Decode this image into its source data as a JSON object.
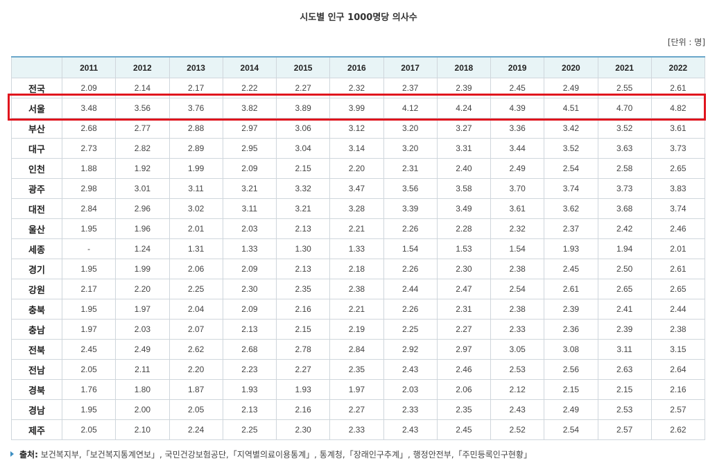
{
  "title": "시도별 인구 1000명당 의사수",
  "unit": "[단위 : 명]",
  "table": {
    "years": [
      "2011",
      "2012",
      "2013",
      "2014",
      "2015",
      "2016",
      "2017",
      "2018",
      "2019",
      "2020",
      "2021",
      "2022"
    ],
    "rows": [
      {
        "region": "전국",
        "values": [
          "2.09",
          "2.14",
          "2.17",
          "2.22",
          "2.27",
          "2.32",
          "2.37",
          "2.39",
          "2.45",
          "2.49",
          "2.55",
          "2.61"
        ]
      },
      {
        "region": "서울",
        "values": [
          "3.48",
          "3.56",
          "3.76",
          "3.82",
          "3.89",
          "3.99",
          "4.12",
          "4.24",
          "4.39",
          "4.51",
          "4.70",
          "4.82"
        ]
      },
      {
        "region": "부산",
        "values": [
          "2.68",
          "2.77",
          "2.88",
          "2.97",
          "3.06",
          "3.12",
          "3.20",
          "3.27",
          "3.36",
          "3.42",
          "3.52",
          "3.61"
        ]
      },
      {
        "region": "대구",
        "values": [
          "2.73",
          "2.82",
          "2.89",
          "2.95",
          "3.04",
          "3.14",
          "3.20",
          "3.31",
          "3.44",
          "3.52",
          "3.63",
          "3.73"
        ]
      },
      {
        "region": "인천",
        "values": [
          "1.88",
          "1.92",
          "1.99",
          "2.09",
          "2.15",
          "2.20",
          "2.31",
          "2.40",
          "2.49",
          "2.54",
          "2.58",
          "2.65"
        ]
      },
      {
        "region": "광주",
        "values": [
          "2.98",
          "3.01",
          "3.11",
          "3.21",
          "3.32",
          "3.47",
          "3.56",
          "3.58",
          "3.70",
          "3.74",
          "3.73",
          "3.83"
        ]
      },
      {
        "region": "대전",
        "values": [
          "2.84",
          "2.96",
          "3.02",
          "3.11",
          "3.21",
          "3.28",
          "3.39",
          "3.49",
          "3.61",
          "3.62",
          "3.68",
          "3.74"
        ]
      },
      {
        "region": "울산",
        "values": [
          "1.95",
          "1.96",
          "2.01",
          "2.03",
          "2.13",
          "2.21",
          "2.26",
          "2.28",
          "2.32",
          "2.37",
          "2.42",
          "2.46"
        ]
      },
      {
        "region": "세종",
        "values": [
          "-",
          "1.24",
          "1.31",
          "1.33",
          "1.30",
          "1.33",
          "1.54",
          "1.53",
          "1.54",
          "1.93",
          "1.94",
          "2.01"
        ]
      },
      {
        "region": "경기",
        "values": [
          "1.95",
          "1.99",
          "2.06",
          "2.09",
          "2.13",
          "2.18",
          "2.26",
          "2.30",
          "2.38",
          "2.45",
          "2.50",
          "2.61"
        ]
      },
      {
        "region": "강원",
        "values": [
          "2.17",
          "2.20",
          "2.25",
          "2.30",
          "2.35",
          "2.38",
          "2.44",
          "2.47",
          "2.54",
          "2.61",
          "2.65",
          "2.65"
        ]
      },
      {
        "region": "충북",
        "values": [
          "1.95",
          "1.97",
          "2.04",
          "2.09",
          "2.16",
          "2.21",
          "2.26",
          "2.31",
          "2.38",
          "2.39",
          "2.41",
          "2.44"
        ]
      },
      {
        "region": "충남",
        "values": [
          "1.97",
          "2.03",
          "2.07",
          "2.13",
          "2.15",
          "2.19",
          "2.25",
          "2.27",
          "2.33",
          "2.36",
          "2.39",
          "2.38"
        ]
      },
      {
        "region": "전북",
        "values": [
          "2.45",
          "2.49",
          "2.62",
          "2.68",
          "2.78",
          "2.84",
          "2.92",
          "2.97",
          "3.05",
          "3.08",
          "3.11",
          "3.15"
        ]
      },
      {
        "region": "전남",
        "values": [
          "2.05",
          "2.11",
          "2.20",
          "2.23",
          "2.27",
          "2.35",
          "2.43",
          "2.46",
          "2.53",
          "2.56",
          "2.63",
          "2.64"
        ]
      },
      {
        "region": "경북",
        "values": [
          "1.76",
          "1.80",
          "1.87",
          "1.93",
          "1.93",
          "1.97",
          "2.03",
          "2.06",
          "2.12",
          "2.15",
          "2.15",
          "2.16"
        ]
      },
      {
        "region": "경남",
        "values": [
          "1.95",
          "2.00",
          "2.05",
          "2.13",
          "2.16",
          "2.27",
          "2.33",
          "2.35",
          "2.43",
          "2.49",
          "2.53",
          "2.57"
        ]
      },
      {
        "region": "제주",
        "values": [
          "2.05",
          "2.10",
          "2.24",
          "2.25",
          "2.30",
          "2.33",
          "2.43",
          "2.45",
          "2.52",
          "2.54",
          "2.57",
          "2.62"
        ]
      }
    ]
  },
  "highlight": {
    "region": "서울",
    "color": "#e0141d"
  },
  "source": {
    "label": "출처:",
    "text": "보건복지부,「보건복지통계연보」, 국민건강보험공단,「지역별의료이용통계」, 통계청,「장래인구추계」, 행정안전부,「주민등록인구현황」"
  },
  "colors": {
    "header_bg": "#e8f4f6",
    "top_border": "#6aa6c9",
    "border": "#cfd6dc",
    "bullet": "#3d8fc2"
  }
}
